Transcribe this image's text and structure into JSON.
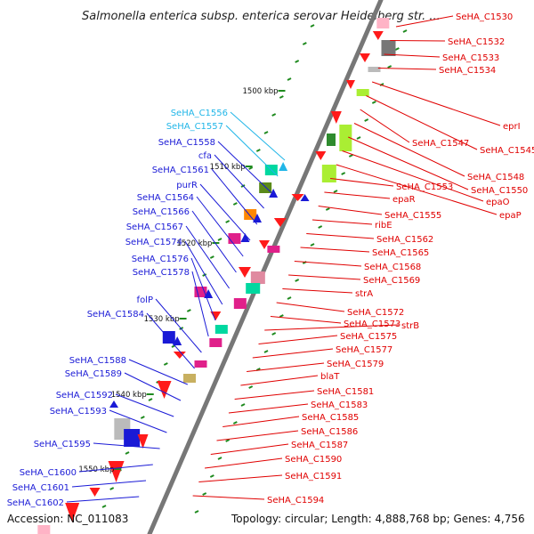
{
  "title": "Salmonella enterica subsp. enterica serovar Heidelberg str. ...",
  "footer": {
    "accession": "Accession: NC_011083",
    "info": "Topology: circular; Length: 4,888,768 bp; Genes: 4,756"
  },
  "colors": {
    "forward_label": "#e00000",
    "reverse_label": "#1a1ad6",
    "highlight_label": "#21b6e8",
    "backbone": "#777777",
    "tick": "#1e8a1e"
  },
  "scale_labels": [
    "1500 kbp",
    "1510 kbp",
    "1520 kbp",
    "1530 kbp",
    "1540 kbp",
    "1550 kbp"
  ],
  "left_labels": [
    {
      "text": "SeHA_C1556",
      "kind": "highlight"
    },
    {
      "text": "SeHA_C1557",
      "kind": "highlight"
    },
    {
      "text": "SeHA_C1558",
      "kind": "reverse"
    },
    {
      "text": "cfa",
      "kind": "reverse"
    },
    {
      "text": "SeHA_C1561",
      "kind": "reverse"
    },
    {
      "text": "purR",
      "kind": "reverse"
    },
    {
      "text": "SeHA_C1564",
      "kind": "reverse"
    },
    {
      "text": "SeHA_C1566",
      "kind": "reverse"
    },
    {
      "text": "SeHA_C1567",
      "kind": "reverse"
    },
    {
      "text": "SeHA_C1574",
      "kind": "reverse"
    },
    {
      "text": "SeHA_C1576",
      "kind": "reverse"
    },
    {
      "text": "SeHA_C1578",
      "kind": "reverse"
    },
    {
      "text": "folP",
      "kind": "reverse"
    },
    {
      "text": "SeHA_C1584",
      "kind": "reverse"
    },
    {
      "text": "SeHA_C1588",
      "kind": "reverse"
    },
    {
      "text": "SeHA_C1589",
      "kind": "reverse"
    },
    {
      "text": "SeHA_C1592",
      "kind": "reverse"
    },
    {
      "text": "SeHA_C1593",
      "kind": "reverse"
    },
    {
      "text": "SeHA_C1595",
      "kind": "reverse"
    },
    {
      "text": "SeHA_C1600",
      "kind": "reverse"
    },
    {
      "text": "SeHA_C1601",
      "kind": "reverse"
    },
    {
      "text": "SeHA_C1602",
      "kind": "reverse"
    }
  ],
  "right_labels": [
    "SeHA_C1530",
    "SeHA_C1532",
    "SeHA_C1533",
    "SeHA_C1534",
    "eprI",
    "SeHA_C1545",
    "SeHA_C1547",
    "SeHA_C1548",
    "SeHA_C1550",
    "epaO",
    "epaP",
    "SeHA_C1553",
    "epaR",
    "SeHA_C1555",
    "ribE",
    "SeHA_C1562",
    "SeHA_C1565",
    "SeHA_C1568",
    "SeHA_C1569",
    "strA",
    "SeHA_C1572",
    "SeHA_C1573",
    "strB",
    "SeHA_C1575",
    "SeHA_C1577",
    "SeHA_C1579",
    "blaT",
    "SeHA_C1581",
    "SeHA_C1583",
    "SeHA_C1585",
    "SeHA_C1586",
    "SeHA_C1587",
    "SeHA_C1590",
    "SeHA_C1591",
    "SeHA_C1594"
  ]
}
